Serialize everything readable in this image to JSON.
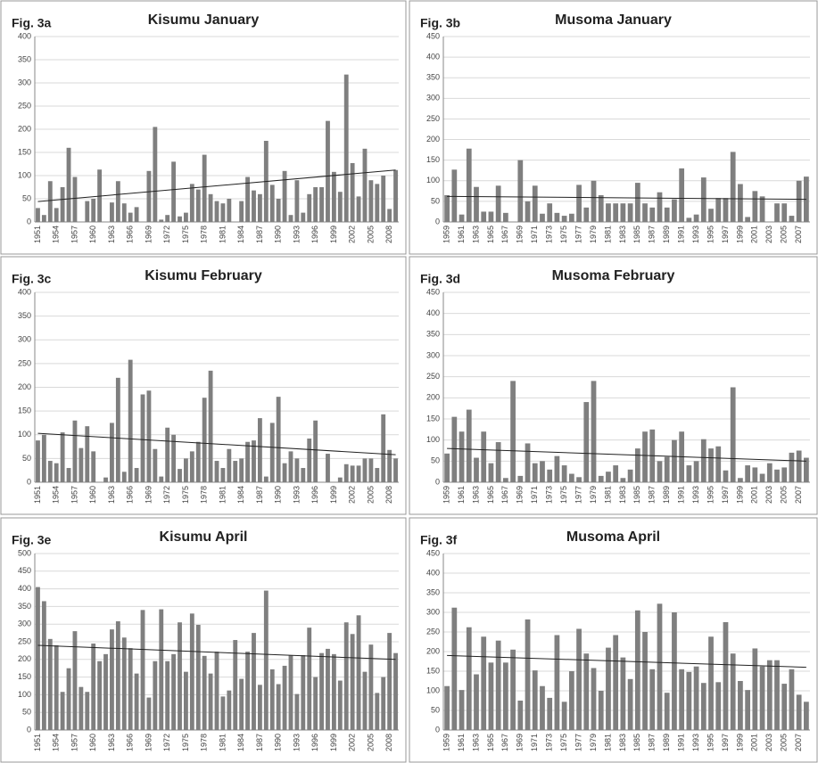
{
  "chart_data": [
    {
      "type": "bar",
      "label": "Fig. 3a",
      "title": "Kisumu January",
      "color": "#7f7f7f",
      "grid": true,
      "ylim": [
        0,
        400
      ],
      "yticks": [
        0,
        50,
        100,
        150,
        200,
        250,
        300,
        350,
        400
      ],
      "trend": [
        44,
        112
      ],
      "categories": [
        "1951",
        null,
        null,
        "1954",
        null,
        null,
        "1957",
        null,
        null,
        "1960",
        null,
        null,
        "1963",
        null,
        null,
        "1966",
        null,
        null,
        "1969",
        null,
        null,
        "1972",
        null,
        null,
        "1975",
        null,
        null,
        "1978",
        null,
        null,
        "1981",
        null,
        null,
        "1984",
        null,
        null,
        "1987",
        null,
        null,
        "1990",
        null,
        null,
        "1993",
        null,
        null,
        "1996",
        null,
        null,
        "1999",
        null,
        null,
        "2002",
        null,
        null,
        "2005",
        null,
        null,
        "2008",
        null
      ],
      "values": [
        30,
        15,
        88,
        30,
        75,
        160,
        97,
        0,
        45,
        50,
        113,
        0,
        42,
        88,
        40,
        20,
        32,
        0,
        110,
        205,
        5,
        15,
        130,
        12,
        20,
        82,
        70,
        145,
        60,
        45,
        40,
        50,
        0,
        45,
        97,
        68,
        60,
        175,
        80,
        50,
        110,
        15,
        90,
        20,
        60,
        75,
        75,
        218,
        108,
        65,
        318,
        127,
        55,
        158,
        90,
        82,
        100,
        28,
        112
      ]
    },
    {
      "type": "bar",
      "label": "Fig. 3b",
      "title": "Musoma January",
      "color": "#7f7f7f",
      "grid": true,
      "ylim": [
        0,
        450
      ],
      "yticks": [
        0,
        50,
        100,
        150,
        200,
        250,
        300,
        350,
        400,
        450
      ],
      "trend": [
        62,
        55
      ],
      "categories": [
        "1959",
        null,
        "1961",
        null,
        "1963",
        null,
        "1965",
        null,
        "1967",
        null,
        "1969",
        null,
        "1971",
        null,
        "1973",
        null,
        "1975",
        null,
        "1977",
        null,
        "1979",
        null,
        "1981",
        null,
        "1983",
        null,
        "1985",
        null,
        "1987",
        null,
        "1989",
        null,
        "1991",
        null,
        "1993",
        null,
        "1995",
        null,
        "1997",
        null,
        "1999",
        null,
        "2001",
        null,
        "2003",
        null,
        "2005",
        null,
        "2007",
        null
      ],
      "values": [
        65,
        127,
        18,
        178,
        85,
        25,
        25,
        88,
        22,
        0,
        150,
        50,
        88,
        20,
        45,
        22,
        15,
        20,
        90,
        35,
        100,
        65,
        45,
        45,
        45,
        45,
        95,
        45,
        35,
        72,
        35,
        55,
        130,
        10,
        18,
        108,
        32,
        58,
        58,
        170,
        92,
        12,
        75,
        62,
        0,
        45,
        45,
        15,
        100,
        110
      ]
    },
    {
      "type": "bar",
      "label": "Fig. 3c",
      "title": "Kisumu February",
      "color": "#7f7f7f",
      "grid": true,
      "ylim": [
        0,
        400
      ],
      "yticks": [
        0,
        50,
        100,
        150,
        200,
        250,
        300,
        350,
        400
      ],
      "trend": [
        103,
        58
      ],
      "categories": [
        "1951",
        null,
        null,
        "1954",
        null,
        null,
        "1957",
        null,
        null,
        "1960",
        null,
        null,
        "1963",
        null,
        null,
        "1966",
        null,
        null,
        "1969",
        null,
        null,
        "1972",
        null,
        null,
        "1975",
        null,
        null,
        "1978",
        null,
        null,
        "1981",
        null,
        null,
        "1984",
        null,
        null,
        "1987",
        null,
        null,
        "1990",
        null,
        null,
        "1993",
        null,
        null,
        "1996",
        null,
        null,
        "1999",
        null,
        null,
        "2002",
        null,
        null,
        "2005",
        null,
        null,
        "2008",
        null
      ],
      "values": [
        88,
        100,
        45,
        40,
        105,
        30,
        130,
        72,
        118,
        65,
        0,
        10,
        125,
        220,
        22,
        258,
        30,
        185,
        193,
        70,
        12,
        115,
        100,
        28,
        50,
        65,
        85,
        178,
        235,
        45,
        30,
        70,
        45,
        50,
        85,
        88,
        135,
        12,
        125,
        180,
        40,
        65,
        50,
        30,
        92,
        130,
        0,
        60,
        0,
        10,
        38,
        35,
        35,
        50,
        50,
        30,
        143,
        68,
        50
      ]
    },
    {
      "type": "bar",
      "label": "Fig. 3d",
      "title": "Musoma February",
      "color": "#7f7f7f",
      "grid": true,
      "ylim": [
        0,
        450
      ],
      "yticks": [
        0,
        50,
        100,
        150,
        200,
        250,
        300,
        350,
        400,
        450
      ],
      "trend": [
        80,
        50
      ],
      "categories": [
        "1959",
        null,
        "1961",
        null,
        "1963",
        null,
        "1965",
        null,
        "1967",
        null,
        "1969",
        null,
        "1971",
        null,
        "1973",
        null,
        "1975",
        null,
        "1977",
        null,
        "1979",
        null,
        "1981",
        null,
        "1983",
        null,
        "1985",
        null,
        "1987",
        null,
        "1989",
        null,
        "1991",
        null,
        "1993",
        null,
        "1995",
        null,
        "1997",
        null,
        "1999",
        null,
        "2001",
        null,
        "2003",
        null,
        "2005",
        null,
        "2007",
        null
      ],
      "values": [
        68,
        155,
        120,
        172,
        58,
        120,
        45,
        95,
        10,
        240,
        15,
        92,
        45,
        50,
        30,
        62,
        40,
        20,
        12,
        190,
        240,
        15,
        25,
        40,
        10,
        30,
        80,
        120,
        125,
        50,
        60,
        100,
        120,
        40,
        50,
        102,
        80,
        85,
        28,
        225,
        10,
        40,
        35,
        20,
        45,
        30,
        35,
        70,
        75,
        58
      ]
    },
    {
      "type": "bar",
      "label": "Fig. 3e",
      "title": "Kisumu April",
      "color": "#7f7f7f",
      "grid": true,
      "ylim": [
        0,
        500
      ],
      "yticks": [
        0,
        50,
        100,
        150,
        200,
        250,
        300,
        350,
        400,
        450,
        500
      ],
      "trend": [
        240,
        200
      ],
      "categories": [
        "1951",
        null,
        null,
        "1954",
        null,
        null,
        "1957",
        null,
        null,
        "1960",
        null,
        null,
        "1963",
        null,
        null,
        "1966",
        null,
        null,
        "1969",
        null,
        null,
        "1972",
        null,
        null,
        "1975",
        null,
        null,
        "1978",
        null,
        null,
        "1981",
        null,
        null,
        "1984",
        null,
        null,
        "1987",
        null,
        null,
        "1990",
        null,
        null,
        "1993",
        null,
        null,
        "1996",
        null,
        null,
        "1999",
        null,
        null,
        "2002",
        null,
        null,
        "2005",
        null,
        null,
        "2008",
        null
      ],
      "values": [
        405,
        365,
        258,
        240,
        108,
        175,
        280,
        122,
        108,
        245,
        195,
        215,
        285,
        308,
        262,
        232,
        160,
        340,
        92,
        195,
        342,
        195,
        215,
        305,
        165,
        330,
        298,
        210,
        160,
        222,
        95,
        112,
        255,
        145,
        222,
        275,
        128,
        395,
        172,
        130,
        182,
        212,
        102,
        212,
        290,
        150,
        218,
        230,
        215,
        140,
        305,
        272,
        325,
        165,
        242,
        105,
        150,
        275,
        218
      ]
    },
    {
      "type": "bar",
      "label": "Fig. 3f",
      "title": "Musoma April",
      "color": "#7f7f7f",
      "grid": true,
      "ylim": [
        0,
        450
      ],
      "yticks": [
        0,
        50,
        100,
        150,
        200,
        250,
        300,
        350,
        400,
        450
      ],
      "trend": [
        190,
        160
      ],
      "categories": [
        "1959",
        null,
        "1961",
        null,
        "1963",
        null,
        "1965",
        null,
        "1967",
        null,
        "1969",
        null,
        "1971",
        null,
        "1973",
        null,
        "1975",
        null,
        "1977",
        null,
        "1979",
        null,
        "1981",
        null,
        "1983",
        null,
        "1985",
        null,
        "1987",
        null,
        "1989",
        null,
        "1991",
        null,
        "1993",
        null,
        "1995",
        null,
        "1997",
        null,
        "1999",
        null,
        "2001",
        null,
        "2003",
        null,
        "2005",
        null,
        "2007",
        null
      ],
      "values": [
        112,
        312,
        102,
        262,
        142,
        238,
        172,
        228,
        172,
        205,
        75,
        282,
        152,
        112,
        82,
        242,
        72,
        150,
        258,
        195,
        158,
        100,
        210,
        242,
        185,
        130,
        305,
        250,
        155,
        322,
        95,
        300,
        155,
        148,
        162,
        120,
        238,
        122,
        275,
        195,
        125,
        102,
        208,
        162,
        178,
        178,
        118,
        155,
        90,
        72
      ]
    }
  ]
}
